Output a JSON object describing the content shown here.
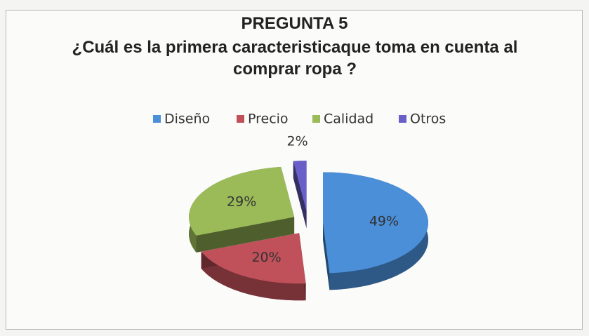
{
  "chart_data": {
    "type": "pie",
    "title": "PREGUNTA 5",
    "subtitle": "¿Cuál es la primera caracteristicaque toma en cuenta al comprar ropa ?",
    "categories": [
      "Diseño",
      "Precio",
      "Calidad",
      "Otros"
    ],
    "values": [
      49,
      20,
      29,
      2
    ],
    "value_labels": [
      "49%",
      "20%",
      "29%",
      "2%"
    ],
    "colors": [
      "#4a8fd8",
      "#c0505a",
      "#9bbb59",
      "#6a5fc8"
    ],
    "legend": "top"
  }
}
